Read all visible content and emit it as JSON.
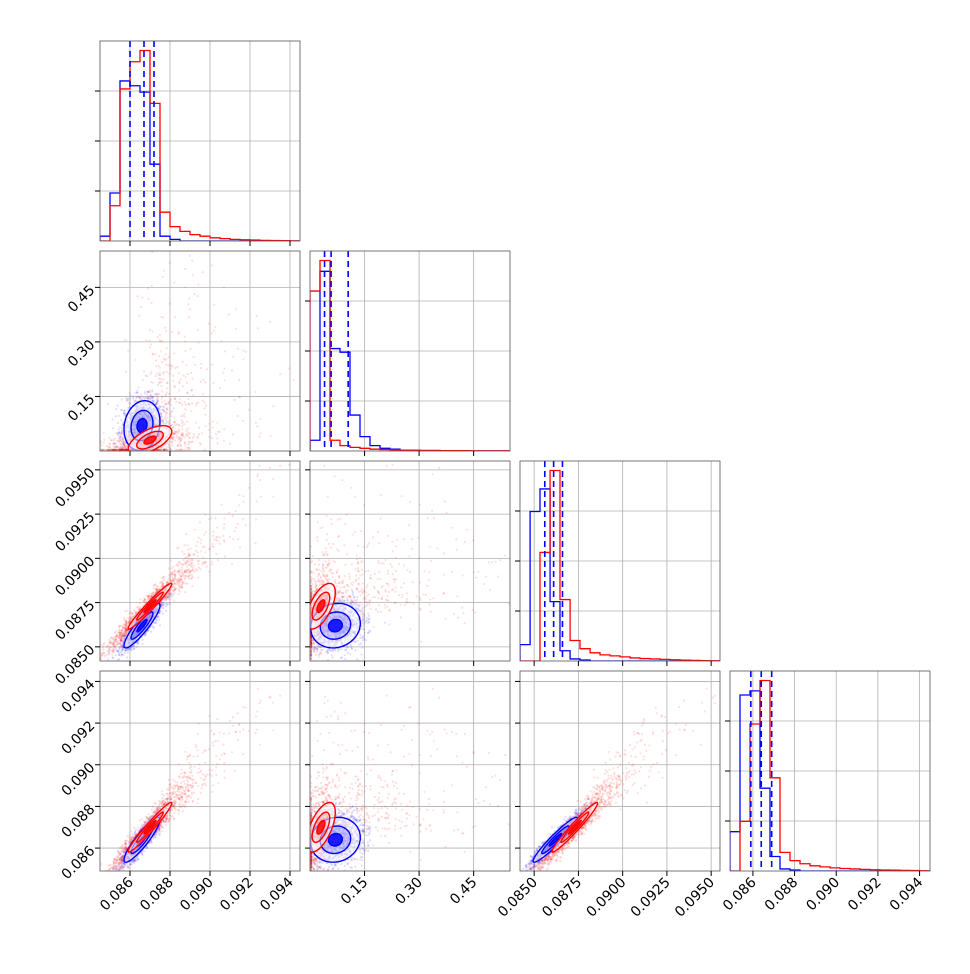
{
  "chart_data": {
    "type": "corner",
    "colors": {
      "series_a": "#0000ff",
      "series_b": "#ff0000",
      "grid": "#b0b0b0",
      "axes": "#555555"
    },
    "series": [
      {
        "color": "#0000ff",
        "quantiles_dashed": true
      },
      {
        "color": "#ff0000"
      }
    ],
    "grid": true,
    "parameters": [
      {
        "range": [
          0.0845,
          0.0945
        ],
        "ticks": [
          0.086,
          0.088,
          0.09,
          0.092,
          0.094
        ],
        "tick_labels": [
          "0.086",
          "0.088",
          "0.090",
          "0.092",
          "0.094"
        ]
      },
      {
        "range": [
          0.0,
          0.55
        ],
        "ticks": [
          0.15,
          0.3,
          0.45
        ],
        "tick_labels": [
          "0.15",
          "0.30",
          "0.45"
        ]
      },
      {
        "range": [
          0.0842,
          0.0955
        ],
        "ticks": [
          0.085,
          0.0875,
          0.09,
          0.0925,
          0.095
        ],
        "tick_labels": [
          "0.0850",
          "0.0875",
          "0.0900",
          "0.0925",
          "0.0950"
        ]
      },
      {
        "range": [
          0.0849,
          0.0945
        ],
        "ticks": [
          0.086,
          0.088,
          0.09,
          0.092,
          0.094
        ],
        "tick_labels": [
          "0.086",
          "0.088",
          "0.090",
          "0.092",
          "0.094"
        ]
      }
    ],
    "quantile_lines": [
      [
        0.086,
        0.0867,
        0.0872
      ],
      [
        0.04,
        0.058,
        0.105
      ],
      [
        0.0856,
        0.0861,
        0.0866
      ],
      [
        0.0859,
        0.0864,
        0.0869
      ]
    ],
    "histograms": [
      {
        "bin_edges": [
          0.0845,
          0.085,
          0.0855,
          0.086,
          0.0865,
          0.087,
          0.0875,
          0.088,
          0.0885,
          0.089,
          0.0895,
          0.09,
          0.0905,
          0.091,
          0.0915,
          0.092,
          0.0925,
          0.093,
          0.0935,
          0.094,
          0.0945
        ],
        "blue": [
          0.03,
          0.3,
          1.0,
          0.97,
          0.93,
          0.48,
          0.03,
          0.01,
          0.0,
          0,
          0,
          0,
          0,
          0,
          0,
          0,
          0,
          0,
          0,
          0
        ],
        "red": [
          0.0,
          0.22,
          0.95,
          1.12,
          1.19,
          0.86,
          0.18,
          0.09,
          0.06,
          0.04,
          0.03,
          0.02,
          0.015,
          0.01,
          0.008,
          0.006,
          0.004,
          0.003,
          0.002,
          0.001
        ]
      },
      {
        "bin_edges": [
          0.0,
          0.0275,
          0.055,
          0.0825,
          0.11,
          0.1375,
          0.165,
          0.1925,
          0.22,
          0.2475,
          0.275,
          0.3025,
          0.33,
          0.3575,
          0.385,
          0.4125,
          0.44,
          0.4675,
          0.495,
          0.5225,
          0.55
        ],
        "blue": [
          0.06,
          1.0,
          0.57,
          0.55,
          0.2,
          0.08,
          0.03,
          0.015,
          0.01,
          0.005,
          0.003,
          0.002,
          0.001,
          0.001,
          0,
          0,
          0,
          0,
          0,
          0
        ],
        "red": [
          0.89,
          1.06,
          0.06,
          0.03,
          0.02,
          0.015,
          0.01,
          0.008,
          0.006,
          0.005,
          0.004,
          0.003,
          0.003,
          0.002,
          0.002,
          0.002,
          0.001,
          0.001,
          0.001,
          0.001
        ]
      },
      {
        "bin_edges": [
          0.0842,
          0.08477,
          0.08533,
          0.0859,
          0.08646,
          0.08703,
          0.08759,
          0.08816,
          0.08872,
          0.08929,
          0.08985,
          0.09042,
          0.09098,
          0.09155,
          0.09211,
          0.09268,
          0.09324,
          0.09381,
          0.09437,
          0.09494,
          0.0955
        ],
        "blue": [
          0.08,
          0.73,
          0.84,
          0.29,
          0.05,
          0.01,
          0.005,
          0,
          0,
          0,
          0,
          0,
          0,
          0,
          0,
          0,
          0,
          0,
          0,
          0
        ],
        "red": [
          0.0,
          0.0,
          0.53,
          0.93,
          0.3,
          0.1,
          0.06,
          0.04,
          0.03,
          0.025,
          0.02,
          0.015,
          0.012,
          0.01,
          0.008,
          0.006,
          0.004,
          0.003,
          0.002,
          0.001
        ]
      },
      {
        "bin_edges": [
          0.0849,
          0.08538,
          0.08586,
          0.08634,
          0.08682,
          0.0873,
          0.08778,
          0.08826,
          0.08874,
          0.08922,
          0.0897,
          0.09018,
          0.09066,
          0.09114,
          0.09162,
          0.0921,
          0.09258,
          0.09306,
          0.09354,
          0.09402,
          0.0945
        ],
        "blue": [
          0.19,
          0.85,
          0.87,
          0.4,
          0.07,
          0.01,
          0.005,
          0,
          0,
          0,
          0,
          0,
          0,
          0,
          0,
          0,
          0,
          0,
          0,
          0
        ],
        "red": [
          0.0,
          0.24,
          0.71,
          0.92,
          0.45,
          0.09,
          0.05,
          0.035,
          0.025,
          0.02,
          0.015,
          0.012,
          0.01,
          0.008,
          0.006,
          0.005,
          0.004,
          0.003,
          0.002,
          0.001
        ]
      }
    ],
    "distributions": {
      "blue": {
        "mean": [
          0.0866,
          0.07,
          0.0862,
          0.0864
        ],
        "sd": [
          0.0005,
          0.038,
          0.0007,
          0.0006
        ],
        "corr": [
          [
            1,
            0.15,
            0.9,
            0.9
          ],
          [
            0.15,
            1,
            0.1,
            0.1
          ],
          [
            0.9,
            0.1,
            1,
            0.95
          ],
          [
            0.9,
            0.1,
            0.95,
            1
          ]
        ]
      },
      "red": {
        "mean": [
          0.087,
          0.03,
          0.0873,
          0.087
        ],
        "sd": [
          0.0011,
          0.04,
          0.0013,
          0.0012
        ],
        "corr": [
          [
            1,
            0.6,
            0.97,
            0.97
          ],
          [
            0.6,
            1,
            0.6,
            0.6
          ],
          [
            0.97,
            0.6,
            1,
            0.97
          ],
          [
            0.97,
            0.6,
            0.97,
            1
          ]
        ]
      }
    }
  }
}
